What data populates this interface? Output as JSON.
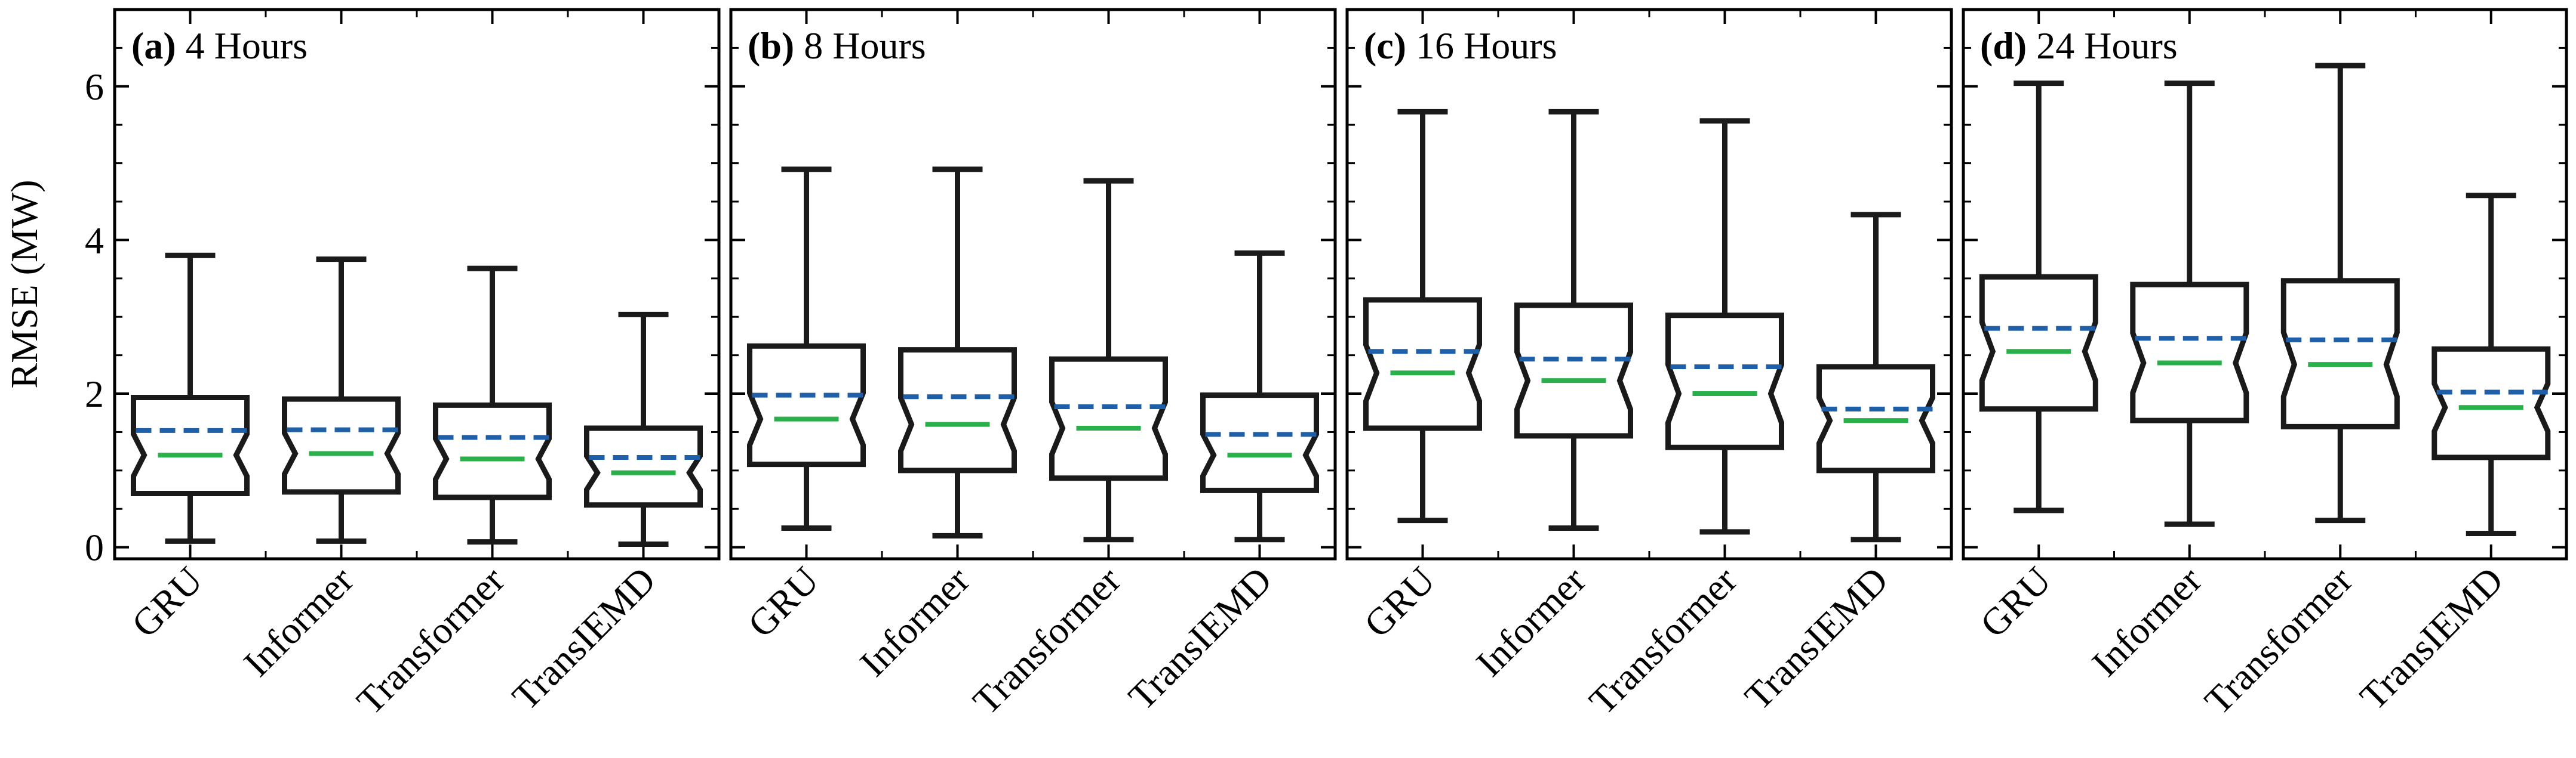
{
  "chart_data": {
    "type": "box",
    "ylabel": "RMSE (MW)",
    "ylim": [
      -0.15,
      7.0
    ],
    "yticks": [
      0,
      2,
      4,
      6
    ],
    "ytick_labels": [
      "0",
      "2",
      "4",
      "6"
    ],
    "categories": [
      "GRU",
      "Informer",
      "Transformer",
      "TransIEMD"
    ],
    "colors": {
      "median": "#2ab04a",
      "mean": "#1f5fa8",
      "box": "#1a1a1a"
    },
    "panels": [
      {
        "tag": "(a)",
        "title": "4 Hours",
        "boxes": [
          {
            "category": "GRU",
            "min": 0.08,
            "q1": 0.7,
            "median": 1.2,
            "q3": 1.95,
            "max": 3.8,
            "mean": 1.52
          },
          {
            "category": "Informer",
            "min": 0.08,
            "q1": 0.72,
            "median": 1.22,
            "q3": 1.93,
            "max": 3.75,
            "mean": 1.53
          },
          {
            "category": "Transformer",
            "min": 0.07,
            "q1": 0.65,
            "median": 1.15,
            "q3": 1.85,
            "max": 3.63,
            "mean": 1.43
          },
          {
            "category": "TransIEMD",
            "min": 0.04,
            "q1": 0.55,
            "median": 0.97,
            "q3": 1.55,
            "max": 3.03,
            "mean": 1.17
          }
        ]
      },
      {
        "tag": "(b)",
        "title": "8 Hours",
        "boxes": [
          {
            "category": "GRU",
            "min": 0.25,
            "q1": 1.08,
            "median": 1.67,
            "q3": 2.62,
            "max": 4.92,
            "mean": 1.98
          },
          {
            "category": "Informer",
            "min": 0.15,
            "q1": 1.0,
            "median": 1.6,
            "q3": 2.57,
            "max": 4.92,
            "mean": 1.96
          },
          {
            "category": "Transformer",
            "min": 0.1,
            "q1": 0.9,
            "median": 1.55,
            "q3": 2.45,
            "max": 4.77,
            "mean": 1.83
          },
          {
            "category": "TransIEMD",
            "min": 0.1,
            "q1": 0.74,
            "median": 1.2,
            "q3": 1.98,
            "max": 3.83,
            "mean": 1.47
          }
        ]
      },
      {
        "tag": "(c)",
        "title": "16 Hours",
        "boxes": [
          {
            "category": "GRU",
            "min": 0.35,
            "q1": 1.55,
            "median": 2.27,
            "q3": 3.22,
            "max": 5.67,
            "mean": 2.55
          },
          {
            "category": "Informer",
            "min": 0.25,
            "q1": 1.45,
            "median": 2.17,
            "q3": 3.15,
            "max": 5.67,
            "mean": 2.45
          },
          {
            "category": "Transformer",
            "min": 0.2,
            "q1": 1.3,
            "median": 2.0,
            "q3": 3.02,
            "max": 5.55,
            "mean": 2.35
          },
          {
            "category": "TransIEMD",
            "min": 0.1,
            "q1": 1.0,
            "median": 1.65,
            "q3": 2.35,
            "max": 4.33,
            "mean": 1.8
          }
        ]
      },
      {
        "tag": "(d)",
        "title": "24 Hours",
        "boxes": [
          {
            "category": "GRU",
            "min": 0.48,
            "q1": 1.8,
            "median": 2.55,
            "q3": 3.52,
            "max": 6.04,
            "mean": 2.85
          },
          {
            "category": "Informer",
            "min": 0.3,
            "q1": 1.65,
            "median": 2.4,
            "q3": 3.42,
            "max": 6.04,
            "mean": 2.72
          },
          {
            "category": "Transformer",
            "min": 0.35,
            "q1": 1.57,
            "median": 2.38,
            "q3": 3.47,
            "max": 6.27,
            "mean": 2.7
          },
          {
            "category": "TransIEMD",
            "min": 0.18,
            "q1": 1.17,
            "median": 1.82,
            "q3": 2.58,
            "max": 4.58,
            "mean": 2.02
          }
        ]
      }
    ]
  }
}
